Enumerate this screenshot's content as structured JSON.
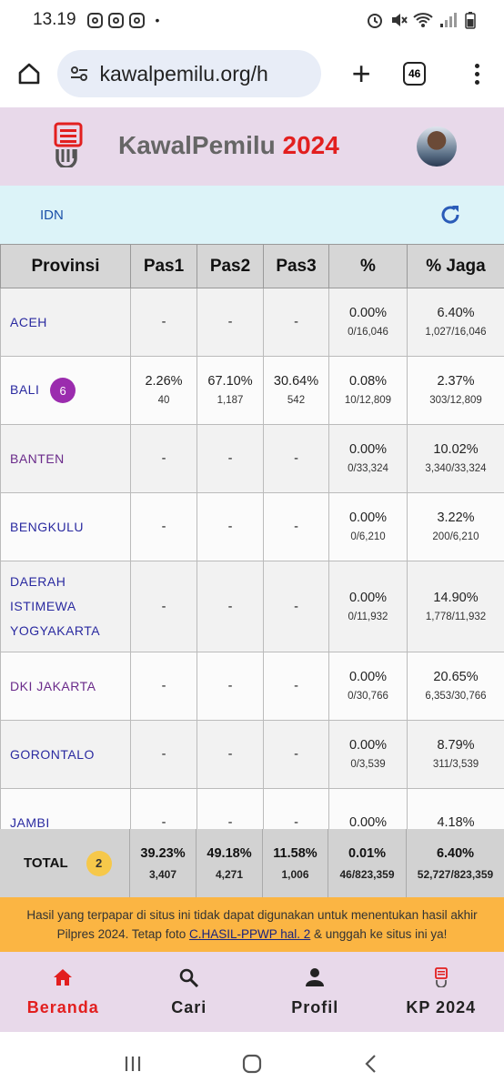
{
  "status": {
    "time": "13.19",
    "dot": "•"
  },
  "browser": {
    "url": "kawalpemilu.org/h",
    "tab_count": "46"
  },
  "header": {
    "brand": "KawalPemilu",
    "year": "2024"
  },
  "crumb": "IDN",
  "table": {
    "headers": [
      "Provinsi",
      "Pas1",
      "Pas2",
      "Pas3",
      "%",
      "% Jaga"
    ],
    "rows": [
      {
        "name": "ACEH",
        "badge": "",
        "p1": "-",
        "p1c": "",
        "p2": "-",
        "p2c": "",
        "p3": "-",
        "p3c": "",
        "pct": "0.00%",
        "pctc": "0/16,046",
        "jaga": "6.40%",
        "jagac": "1,027/16,046"
      },
      {
        "name": "BALI",
        "badge": "6",
        "p1": "2.26%",
        "p1c": "40",
        "p2": "67.10%",
        "p2c": "1,187",
        "p3": "30.64%",
        "p3c": "542",
        "pct": "0.08%",
        "pctc": "10/12,809",
        "jaga": "2.37%",
        "jagac": "303/12,809"
      },
      {
        "name": "BANTEN",
        "badge": "",
        "p1": "-",
        "p1c": "",
        "p2": "-",
        "p2c": "",
        "p3": "-",
        "p3c": "",
        "pct": "0.00%",
        "pctc": "0/33,324",
        "jaga": "10.02%",
        "jagac": "3,340/33,324"
      },
      {
        "name": "BENGKULU",
        "badge": "",
        "p1": "-",
        "p1c": "",
        "p2": "-",
        "p2c": "",
        "p3": "-",
        "p3c": "",
        "pct": "0.00%",
        "pctc": "0/6,210",
        "jaga": "3.22%",
        "jagac": "200/6,210"
      },
      {
        "name": "DAERAH ISTIMEWA YOGYAKARTA",
        "badge": "",
        "p1": "-",
        "p1c": "",
        "p2": "-",
        "p2c": "",
        "p3": "-",
        "p3c": "",
        "pct": "0.00%",
        "pctc": "0/11,932",
        "jaga": "14.90%",
        "jagac": "1,778/11,932"
      },
      {
        "name": "DKI JAKARTA",
        "badge": "",
        "p1": "-",
        "p1c": "",
        "p2": "-",
        "p2c": "",
        "p3": "-",
        "p3c": "",
        "pct": "0.00%",
        "pctc": "0/30,766",
        "jaga": "20.65%",
        "jagac": "6,353/30,766"
      },
      {
        "name": "GORONTALO",
        "badge": "",
        "p1": "-",
        "p1c": "",
        "p2": "-",
        "p2c": "",
        "p3": "-",
        "p3c": "",
        "pct": "0.00%",
        "pctc": "0/3,539",
        "jaga": "8.79%",
        "jagac": "311/3,539"
      },
      {
        "name": "JAMBI",
        "badge": "",
        "p1": "-",
        "p1c": "",
        "p2": "-",
        "p2c": "",
        "p3": "-",
        "p3c": "",
        "pct": "0.00%",
        "pctc": "",
        "jaga": "4.18%",
        "jagac": ""
      }
    ],
    "total": {
      "label": "TOTAL",
      "badge": "2",
      "p1": "39.23%",
      "p1c": "3,407",
      "p2": "49.18%",
      "p2c": "4,271",
      "p3": "11.58%",
      "p3c": "1,006",
      "pct": "0.01%",
      "pctc": "46/823,359",
      "jaga": "6.40%",
      "jagac": "52,727/823,359"
    }
  },
  "notice": {
    "before": "Hasil yang terpapar di situs ini tidak dapat digunakan untuk menentukan hasil akhir Pilpres 2024. Tetap foto ",
    "link": "C.HASIL-PPWP hal. 2",
    "after": " & unggah ke situs ini ya!"
  },
  "nav": [
    {
      "label": "Beranda",
      "icon": "home-icon"
    },
    {
      "label": "Cari",
      "icon": "search-icon"
    },
    {
      "label": "Profil",
      "icon": "person-icon"
    },
    {
      "label": "KP 2024",
      "icon": "kp-logo-icon"
    }
  ],
  "colors": {
    "accent": "#e21f1f",
    "header_bg": "#e8d9ea",
    "crumb_bg": "#dcf3f8",
    "notice_bg": "#fbb543",
    "badge_purple": "#9b2cae",
    "badge_yellow": "#f6c84a"
  }
}
